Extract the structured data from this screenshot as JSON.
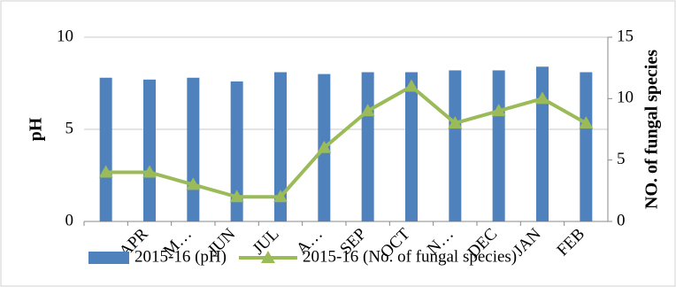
{
  "chart_data": {
    "type": "bar_line",
    "categories": [
      null,
      "APR",
      "M…",
      "JUN",
      "JUL",
      "A…",
      "SEP",
      "OCT",
      "N…",
      "DEC",
      "JAN",
      "FEB"
    ],
    "series": [
      {
        "name": "2015-16 (pH)",
        "color": "#4f81bd",
        "type": "bar",
        "values": [
          7.8,
          7.7,
          7.8,
          7.6,
          8.1,
          8.0,
          8.1,
          8.1,
          8.2,
          8.2,
          8.4,
          8.1
        ]
      },
      {
        "name": "2015-16 (No. of fungal species)",
        "color": "#9bbb59",
        "type": "line",
        "axis": "y2",
        "values": [
          4,
          4,
          3,
          2,
          2,
          6,
          9,
          11,
          8,
          9,
          10,
          8
        ]
      }
    ],
    "ylabel": "pH",
    "y2label": "NO. of fungal species",
    "ylim": [
      0,
      10
    ],
    "yticks": [
      0,
      5,
      10
    ],
    "y2lim": [
      0,
      15
    ],
    "y2ticks": [
      0,
      5,
      10,
      15
    ],
    "grid": true,
    "legend": "bottom"
  }
}
